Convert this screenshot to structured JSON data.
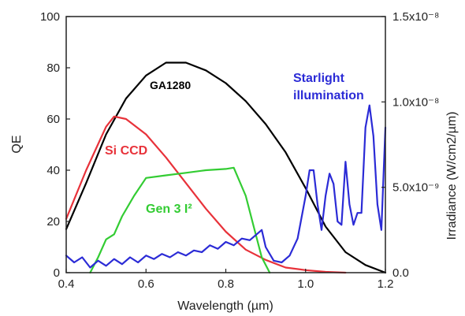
{
  "chart_data": {
    "type": "line",
    "title": "",
    "xlabel": "Wavelength (µm)",
    "ylabel": "QE",
    "y2label": "Irradiance (W/cm2/µm)",
    "xlim": [
      0.4,
      1.2
    ],
    "ylim": [
      0,
      100
    ],
    "y2lim": [
      0.0,
      1.5e-08
    ],
    "x_ticks": [
      "0.4",
      "0.6",
      "0.8",
      "1.0",
      "1.2"
    ],
    "y_ticks": [
      "0",
      "20",
      "40",
      "60",
      "80",
      "100"
    ],
    "y2_ticks": [
      "0.0",
      "5.0x10⁻⁹",
      "1.0x10⁻⁸",
      "1.5x10⁻⁸"
    ],
    "grid": false,
    "series": [
      {
        "name": "GA1280",
        "color": "#000000",
        "axis": "left",
        "x": [
          0.4,
          0.45,
          0.5,
          0.55,
          0.6,
          0.65,
          0.7,
          0.75,
          0.8,
          0.85,
          0.9,
          0.95,
          1.0,
          1.05,
          1.1,
          1.15,
          1.2
        ],
        "y": [
          17,
          35,
          54,
          68,
          77,
          82,
          82,
          79,
          74,
          67,
          58,
          47,
          33,
          18,
          8,
          3,
          0
        ]
      },
      {
        "name": "Si CCD",
        "color": "#e8323a",
        "axis": "left",
        "x": [
          0.4,
          0.45,
          0.5,
          0.52,
          0.55,
          0.6,
          0.65,
          0.7,
          0.75,
          0.8,
          0.85,
          0.9,
          0.95,
          1.0,
          1.05,
          1.1
        ],
        "y": [
          21,
          40,
          57,
          61,
          60,
          54,
          45,
          35,
          25,
          16,
          9,
          5,
          2,
          1,
          0.3,
          0
        ]
      },
      {
        "name": "Gen 3 I²",
        "color": "#33cc33",
        "axis": "left",
        "x": [
          0.46,
          0.48,
          0.5,
          0.52,
          0.54,
          0.57,
          0.6,
          0.65,
          0.7,
          0.75,
          0.8,
          0.82,
          0.85,
          0.87,
          0.89,
          0.91
        ],
        "y": [
          0,
          6,
          13,
          15,
          22,
          30,
          37,
          38,
          39,
          40,
          40.5,
          41,
          30,
          18,
          6,
          0
        ]
      },
      {
        "name": "Starlight illumination",
        "color": "#2b2bd6",
        "axis": "right",
        "x": [
          0.4,
          0.42,
          0.44,
          0.46,
          0.48,
          0.5,
          0.52,
          0.54,
          0.56,
          0.58,
          0.6,
          0.62,
          0.64,
          0.66,
          0.68,
          0.7,
          0.72,
          0.74,
          0.76,
          0.78,
          0.8,
          0.82,
          0.84,
          0.86,
          0.88,
          0.89,
          0.9,
          0.92,
          0.94,
          0.96,
          0.98,
          1.0,
          1.01,
          1.02,
          1.03,
          1.04,
          1.05,
          1.06,
          1.07,
          1.08,
          1.09,
          1.1,
          1.11,
          1.12,
          1.13,
          1.14,
          1.15,
          1.16,
          1.17,
          1.18,
          1.19,
          1.2
        ],
        "y": [
          1e-09,
          6e-10,
          9e-10,
          3e-10,
          7e-10,
          4e-10,
          8e-10,
          5e-10,
          9e-10,
          6e-10,
          1e-09,
          8e-10,
          1.1e-09,
          9e-10,
          1.2e-09,
          1e-09,
          1.3e-09,
          1.2e-09,
          1.6e-09,
          1.4e-09,
          1.8e-09,
          1.6e-09,
          2e-09,
          1.9e-09,
          2.3e-09,
          2.5e-09,
          1.5e-09,
          7e-10,
          6e-10,
          1e-09,
          2e-09,
          4.5e-09,
          6e-09,
          6e-09,
          4e-09,
          2.5e-09,
          4.5e-09,
          5.8e-09,
          5.2e-09,
          3e-09,
          2.8e-09,
          6.5e-09,
          4e-09,
          2.8e-09,
          3.5e-09,
          3.5e-09,
          8.5e-09,
          9.8e-09,
          8e-09,
          4e-09,
          2.5e-09,
          8.5e-09
        ]
      }
    ]
  }
}
